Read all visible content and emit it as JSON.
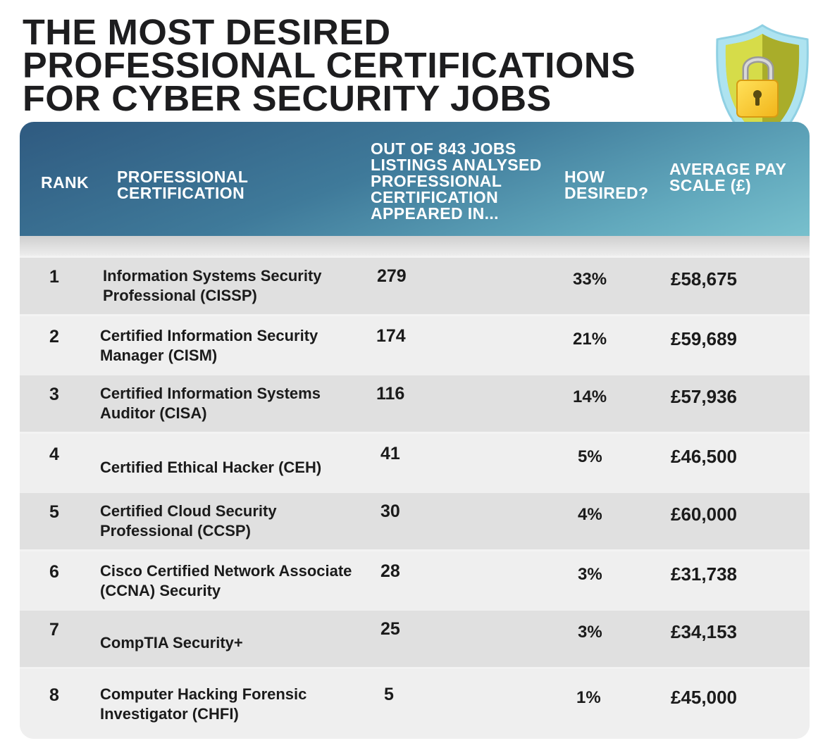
{
  "title": {
    "line1": "THE MOST DESIRED",
    "line2": "PROFESSIONAL CERTIFICATIONS",
    "line3": "FOR CYBER SECURITY JOBS"
  },
  "icon": "padlock-shield-icon",
  "colors": {
    "header_dark": "#2f5a80",
    "header_light": "#78c0cd",
    "row_shade": "#e0e0e0",
    "row_light": "#efefef"
  },
  "chart_data": {
    "type": "table",
    "columns": [
      "RANK",
      "PROFESSIONAL CERTIFICATION",
      "OUT OF 843 JOBS LISTINGS ANALYSED PROFESSIONAL CERTIFICATION APPEARED IN...",
      "HOW DESIRED?",
      "AVERAGE PAY SCALE (£)"
    ],
    "rows": [
      {
        "rank": "1",
        "certification": "Information Systems Security Professional (CISSP)",
        "jobs": "279",
        "desired": "33%",
        "pay": "£58,675"
      },
      {
        "rank": "2",
        "certification": "Certified Information Security Manager (CISM)",
        "jobs": "174",
        "desired": "21%",
        "pay": "£59,689"
      },
      {
        "rank": "3",
        "certification": "Certified Information Systems Auditor (CISA)",
        "jobs": "116",
        "desired": "14%",
        "pay": "£57,936"
      },
      {
        "rank": "4",
        "certification": "Certified Ethical Hacker (CEH)",
        "jobs": "41",
        "desired": "5%",
        "pay": "£46,500"
      },
      {
        "rank": "5",
        "certification": "Certified Cloud Security Professional (CCSP)",
        "jobs": "30",
        "desired": "4%",
        "pay": "£60,000"
      },
      {
        "rank": "6",
        "certification": "Cisco Certified Network Associate (CCNA) Security",
        "jobs": "28",
        "desired": "3%",
        "pay": "£31,738"
      },
      {
        "rank": "7",
        "certification": "CompTIA Security+",
        "jobs": "25",
        "desired": "3%",
        "pay": "£34,153"
      },
      {
        "rank": "8",
        "certification": "Computer Hacking Forensic Investigator (CHFI)",
        "jobs": "5",
        "desired": "1%",
        "pay": "£45,000"
      }
    ]
  }
}
